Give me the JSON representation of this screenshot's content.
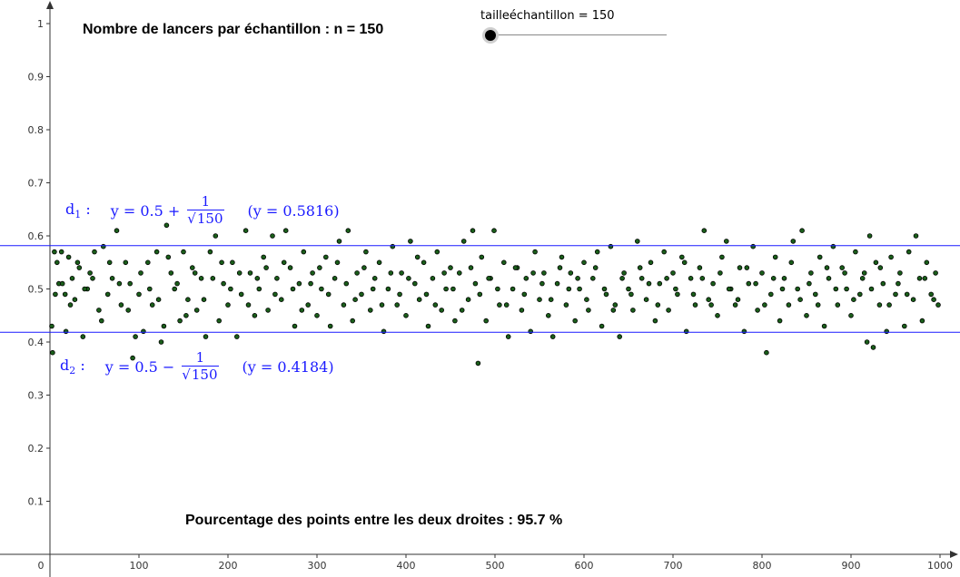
{
  "title": "Nombre de lancers par échantillon : n = 150",
  "slider": {
    "label": "tailleéchantillon = 150",
    "value": 150
  },
  "percentage_text": "Pourcentage des points entre les deux droites : 95.7 %",
  "line_color": "#1a1aff",
  "point_color": "#1a5e1a",
  "d1": {
    "name": "d",
    "sub": "1",
    "colon": ":",
    "lhs": "y = 0.5 +",
    "num": "1",
    "den_sqrt": "√",
    "den_value": "150",
    "value_text": "(y = 0.5816)",
    "y": 0.5816
  },
  "d2": {
    "name": "d",
    "sub": "2",
    "colon": ":",
    "lhs": "y = 0.5 −",
    "num": "1",
    "den_sqrt": "√",
    "den_value": "150",
    "value_text": "(y = 0.4184)",
    "y": 0.4184
  },
  "chart_data": {
    "type": "scatter",
    "xlim": [
      0,
      1000
    ],
    "ylim": [
      0,
      1
    ],
    "x_ticks": [
      "0",
      "100",
      "200",
      "300",
      "400",
      "500",
      "600",
      "700",
      "800",
      "900",
      "1000"
    ],
    "y_ticks": [
      "0.1",
      "0.2",
      "0.3",
      "0.4",
      "0.5",
      "0.6",
      "0.7",
      "0.8",
      "0.9",
      "1"
    ],
    "horizontal_lines": [
      0.5816,
      0.4184
    ],
    "points": [
      [
        2,
        0.43
      ],
      [
        3,
        0.38
      ],
      [
        5,
        0.57
      ],
      [
        8,
        0.55
      ],
      [
        10,
        0.51
      ],
      [
        13,
        0.57
      ],
      [
        17,
        0.49
      ],
      [
        18,
        0.42
      ],
      [
        21,
        0.56
      ],
      [
        25,
        0.52
      ],
      [
        28,
        0.48
      ],
      [
        33,
        0.54
      ],
      [
        37,
        0.41
      ],
      [
        42,
        0.5
      ],
      [
        45,
        0.53
      ],
      [
        50,
        0.57
      ],
      [
        55,
        0.46
      ],
      [
        60,
        0.58
      ],
      [
        65,
        0.49
      ],
      [
        70,
        0.52
      ],
      [
        75,
        0.61
      ],
      [
        80,
        0.47
      ],
      [
        85,
        0.55
      ],
      [
        90,
        0.51
      ],
      [
        93,
        0.37
      ],
      [
        96,
        0.41
      ],
      [
        100,
        0.49
      ],
      [
        105,
        0.42
      ],
      [
        110,
        0.55
      ],
      [
        115,
        0.47
      ],
      [
        120,
        0.57
      ],
      [
        125,
        0.4
      ],
      [
        128,
        0.43
      ],
      [
        131,
        0.62
      ],
      [
        136,
        0.53
      ],
      [
        140,
        0.5
      ],
      [
        146,
        0.44
      ],
      [
        150,
        0.57
      ],
      [
        155,
        0.48
      ],
      [
        160,
        0.54
      ],
      [
        165,
        0.46
      ],
      [
        170,
        0.52
      ],
      [
        175,
        0.41
      ],
      [
        180,
        0.57
      ],
      [
        186,
        0.6
      ],
      [
        190,
        0.44
      ],
      [
        195,
        0.51
      ],
      [
        200,
        0.47
      ],
      [
        205,
        0.55
      ],
      [
        210,
        0.41
      ],
      [
        215,
        0.49
      ],
      [
        220,
        0.61
      ],
      [
        225,
        0.53
      ],
      [
        230,
        0.45
      ],
      [
        235,
        0.5
      ],
      [
        240,
        0.56
      ],
      [
        245,
        0.46
      ],
      [
        250,
        0.6
      ],
      [
        255,
        0.52
      ],
      [
        260,
        0.48
      ],
      [
        265,
        0.61
      ],
      [
        270,
        0.54
      ],
      [
        275,
        0.43
      ],
      [
        280,
        0.51
      ],
      [
        285,
        0.57
      ],
      [
        290,
        0.47
      ],
      [
        295,
        0.53
      ],
      [
        300,
        0.45
      ],
      [
        305,
        0.5
      ],
      [
        310,
        0.56
      ],
      [
        315,
        0.43
      ],
      [
        320,
        0.52
      ],
      [
        325,
        0.59
      ],
      [
        330,
        0.47
      ],
      [
        335,
        0.61
      ],
      [
        340,
        0.44
      ],
      [
        345,
        0.53
      ],
      [
        350,
        0.49
      ],
      [
        355,
        0.57
      ],
      [
        360,
        0.46
      ],
      [
        365,
        0.52
      ],
      [
        370,
        0.55
      ],
      [
        375,
        0.42
      ],
      [
        380,
        0.5
      ],
      [
        385,
        0.58
      ],
      [
        390,
        0.47
      ],
      [
        395,
        0.53
      ],
      [
        400,
        0.45
      ],
      [
        405,
        0.59
      ],
      [
        410,
        0.51
      ],
      [
        415,
        0.48
      ],
      [
        420,
        0.55
      ],
      [
        425,
        0.43
      ],
      [
        430,
        0.52
      ],
      [
        435,
        0.57
      ],
      [
        440,
        0.46
      ],
      [
        445,
        0.5
      ],
      [
        450,
        0.54
      ],
      [
        455,
        0.44
      ],
      [
        460,
        0.53
      ],
      [
        465,
        0.59
      ],
      [
        470,
        0.48
      ],
      [
        475,
        0.61
      ],
      [
        478,
        0.51
      ],
      [
        481,
        0.36
      ],
      [
        485,
        0.56
      ],
      [
        490,
        0.44
      ],
      [
        495,
        0.52
      ],
      [
        499,
        0.61
      ],
      [
        505,
        0.47
      ],
      [
        510,
        0.55
      ],
      [
        515,
        0.41
      ],
      [
        520,
        0.5
      ],
      [
        525,
        0.54
      ],
      [
        530,
        0.46
      ],
      [
        535,
        0.52
      ],
      [
        540,
        0.42
      ],
      [
        545,
        0.57
      ],
      [
        550,
        0.48
      ],
      [
        555,
        0.53
      ],
      [
        560,
        0.45
      ],
      [
        565,
        0.41
      ],
      [
        570,
        0.51
      ],
      [
        575,
        0.56
      ],
      [
        580,
        0.47
      ],
      [
        585,
        0.53
      ],
      [
        590,
        0.44
      ],
      [
        595,
        0.5
      ],
      [
        600,
        0.55
      ],
      [
        605,
        0.46
      ],
      [
        610,
        0.52
      ],
      [
        615,
        0.57
      ],
      [
        620,
        0.43
      ],
      [
        625,
        0.49
      ],
      [
        630,
        0.58
      ],
      [
        635,
        0.47
      ],
      [
        640,
        0.41
      ],
      [
        645,
        0.53
      ],
      [
        650,
        0.5
      ],
      [
        655,
        0.46
      ],
      [
        660,
        0.59
      ],
      [
        665,
        0.52
      ],
      [
        670,
        0.48
      ],
      [
        675,
        0.55
      ],
      [
        680,
        0.44
      ],
      [
        685,
        0.51
      ],
      [
        690,
        0.57
      ],
      [
        695,
        0.46
      ],
      [
        700,
        0.53
      ],
      [
        705,
        0.49
      ],
      [
        710,
        0.56
      ],
      [
        715,
        0.42
      ],
      [
        720,
        0.52
      ],
      [
        725,
        0.47
      ],
      [
        730,
        0.54
      ],
      [
        735,
        0.61
      ],
      [
        740,
        0.48
      ],
      [
        745,
        0.51
      ],
      [
        750,
        0.45
      ],
      [
        755,
        0.56
      ],
      [
        760,
        0.59
      ],
      [
        765,
        0.5
      ],
      [
        770,
        0.47
      ],
      [
        775,
        0.54
      ],
      [
        780,
        0.42
      ],
      [
        785,
        0.51
      ],
      [
        790,
        0.58
      ],
      [
        795,
        0.46
      ],
      [
        800,
        0.53
      ],
      [
        805,
        0.38
      ],
      [
        810,
        0.49
      ],
      [
        815,
        0.56
      ],
      [
        820,
        0.44
      ],
      [
        825,
        0.52
      ],
      [
        830,
        0.47
      ],
      [
        835,
        0.59
      ],
      [
        840,
        0.5
      ],
      [
        845,
        0.61
      ],
      [
        850,
        0.45
      ],
      [
        855,
        0.53
      ],
      [
        860,
        0.49
      ],
      [
        865,
        0.56
      ],
      [
        870,
        0.43
      ],
      [
        875,
        0.52
      ],
      [
        880,
        0.58
      ],
      [
        885,
        0.47
      ],
      [
        890,
        0.54
      ],
      [
        895,
        0.5
      ],
      [
        900,
        0.45
      ],
      [
        905,
        0.57
      ],
      [
        910,
        0.49
      ],
      [
        915,
        0.53
      ],
      [
        918,
        0.4
      ],
      [
        921,
        0.6
      ],
      [
        925,
        0.39
      ],
      [
        928,
        0.55
      ],
      [
        932,
        0.47
      ],
      [
        936,
        0.51
      ],
      [
        940,
        0.42
      ],
      [
        945,
        0.56
      ],
      [
        950,
        0.49
      ],
      [
        955,
        0.53
      ],
      [
        960,
        0.43
      ],
      [
        965,
        0.57
      ],
      [
        970,
        0.48
      ],
      [
        973,
        0.6
      ],
      [
        977,
        0.52
      ],
      [
        980,
        0.44
      ],
      [
        985,
        0.55
      ],
      [
        990,
        0.49
      ],
      [
        995,
        0.53
      ],
      [
        998,
        0.47
      ],
      [
        6,
        0.49
      ],
      [
        14,
        0.51
      ],
      [
        23,
        0.47
      ],
      [
        31,
        0.55
      ],
      [
        39,
        0.5
      ],
      [
        48,
        0.52
      ],
      [
        58,
        0.44
      ],
      [
        67,
        0.55
      ],
      [
        78,
        0.51
      ],
      [
        88,
        0.46
      ],
      [
        102,
        0.53
      ],
      [
        112,
        0.5
      ],
      [
        122,
        0.48
      ],
      [
        133,
        0.56
      ],
      [
        143,
        0.51
      ],
      [
        153,
        0.45
      ],
      [
        163,
        0.53
      ],
      [
        173,
        0.48
      ],
      [
        183,
        0.52
      ],
      [
        193,
        0.55
      ],
      [
        203,
        0.5
      ],
      [
        213,
        0.53
      ],
      [
        223,
        0.47
      ],
      [
        233,
        0.52
      ],
      [
        243,
        0.54
      ],
      [
        253,
        0.49
      ],
      [
        263,
        0.55
      ],
      [
        273,
        0.5
      ],
      [
        283,
        0.46
      ],
      [
        293,
        0.51
      ],
      [
        303,
        0.54
      ],
      [
        313,
        0.49
      ],
      [
        323,
        0.55
      ],
      [
        333,
        0.51
      ],
      [
        343,
        0.48
      ],
      [
        353,
        0.54
      ],
      [
        363,
        0.5
      ],
      [
        373,
        0.47
      ],
      [
        383,
        0.53
      ],
      [
        393,
        0.49
      ],
      [
        403,
        0.52
      ],
      [
        413,
        0.56
      ],
      [
        423,
        0.49
      ],
      [
        433,
        0.47
      ],
      [
        443,
        0.53
      ],
      [
        453,
        0.5
      ],
      [
        463,
        0.46
      ],
      [
        473,
        0.54
      ],
      [
        483,
        0.49
      ],
      [
        493,
        0.52
      ],
      [
        503,
        0.5
      ],
      [
        513,
        0.47
      ],
      [
        523,
        0.54
      ],
      [
        533,
        0.49
      ],
      [
        543,
        0.53
      ],
      [
        553,
        0.51
      ],
      [
        563,
        0.48
      ],
      [
        573,
        0.54
      ],
      [
        583,
        0.5
      ],
      [
        593,
        0.52
      ],
      [
        603,
        0.48
      ],
      [
        613,
        0.54
      ],
      [
        623,
        0.5
      ],
      [
        633,
        0.46
      ],
      [
        643,
        0.52
      ],
      [
        653,
        0.49
      ],
      [
        663,
        0.54
      ],
      [
        673,
        0.51
      ],
      [
        683,
        0.47
      ],
      [
        693,
        0.52
      ],
      [
        703,
        0.5
      ],
      [
        713,
        0.55
      ],
      [
        723,
        0.49
      ],
      [
        733,
        0.52
      ],
      [
        743,
        0.47
      ],
      [
        753,
        0.53
      ],
      [
        763,
        0.5
      ],
      [
        773,
        0.48
      ],
      [
        783,
        0.54
      ],
      [
        793,
        0.51
      ],
      [
        803,
        0.47
      ],
      [
        813,
        0.52
      ],
      [
        823,
        0.5
      ],
      [
        833,
        0.55
      ],
      [
        843,
        0.48
      ],
      [
        853,
        0.51
      ],
      [
        863,
        0.47
      ],
      [
        873,
        0.54
      ],
      [
        883,
        0.5
      ],
      [
        893,
        0.53
      ],
      [
        903,
        0.48
      ],
      [
        913,
        0.52
      ],
      [
        923,
        0.5
      ],
      [
        933,
        0.54
      ],
      [
        943,
        0.47
      ],
      [
        953,
        0.51
      ],
      [
        963,
        0.49
      ],
      [
        983,
        0.52
      ],
      [
        993,
        0.48
      ]
    ]
  }
}
